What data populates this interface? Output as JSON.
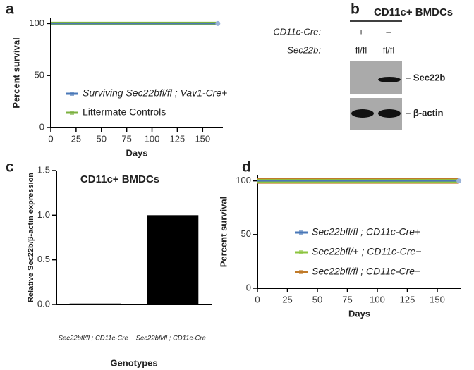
{
  "chart_data": [
    {
      "type": "line",
      "panel_label": "a",
      "xlabel": "Days",
      "ylabel": "Percent survival",
      "xlim": [
        0,
        170
      ],
      "ylim": [
        0,
        105
      ],
      "xticks": [
        0,
        25,
        50,
        75,
        100,
        125,
        150
      ],
      "yticks": [
        0,
        50,
        100
      ],
      "x": [
        0,
        165
      ],
      "series": [
        {
          "name": "Surviving Sec22bfl/fl ; Vav1-Cre+",
          "color": "#4a78b8",
          "values": [
            100,
            100
          ]
        },
        {
          "name": "Littermate Controls",
          "color": "#7cb13f",
          "values": [
            100,
            100
          ]
        }
      ]
    },
    {
      "type": "bar",
      "panel_label": "c",
      "title": "CD11c+ BMDCs",
      "xlabel": "Genotypes",
      "ylabel": "Relative Sec22b/β-actin expression",
      "categories": [
        "Sec22bfl/fl ; CD11c-Cre+",
        "Sec22bfl/fl ; CD11c-Cre−"
      ],
      "values": [
        0.01,
        1.0
      ],
      "color": "#000000",
      "ylim": [
        0,
        1.5
      ],
      "yticks": [
        {
          "value": 0,
          "label": "0.0"
        },
        {
          "value": 0.5,
          "label": "0.5"
        },
        {
          "value": 1,
          "label": "1.0"
        },
        {
          "value": 1.5,
          "label": "1.5"
        }
      ]
    },
    {
      "type": "line",
      "panel_label": "d",
      "xlabel": "Days",
      "ylabel": "Percent survival",
      "xlim": [
        0,
        170
      ],
      "ylim": [
        0,
        105
      ],
      "xticks": [
        0,
        25,
        50,
        75,
        100,
        125,
        150
      ],
      "yticks": [
        0,
        50,
        100
      ],
      "x": [
        0,
        168
      ],
      "series": [
        {
          "name": "Sec22bfl/fl ; CD11c-Cre+",
          "color": "#4a78b8",
          "values": [
            100,
            100
          ]
        },
        {
          "name": "Sec22bfl/+ ; CD11c-Cre−",
          "color": "#8cc43f",
          "values": [
            100,
            100
          ]
        },
        {
          "name": "Sec22bfl/fl ; CD11c-Cre−",
          "color": "#c07a28",
          "values": [
            100,
            100
          ]
        }
      ]
    }
  ],
  "blot": {
    "panel_label": "b",
    "title": "CD11c+ BMDCs",
    "rows": [
      {
        "label": "CD11c-Cre:",
        "lanes": [
          "+",
          "–"
        ]
      },
      {
        "label": "Sec22b:",
        "lanes": [
          "fl/fl",
          "fl/fl"
        ]
      }
    ],
    "bands": [
      "– Sec22b",
      "– β-actin"
    ]
  }
}
